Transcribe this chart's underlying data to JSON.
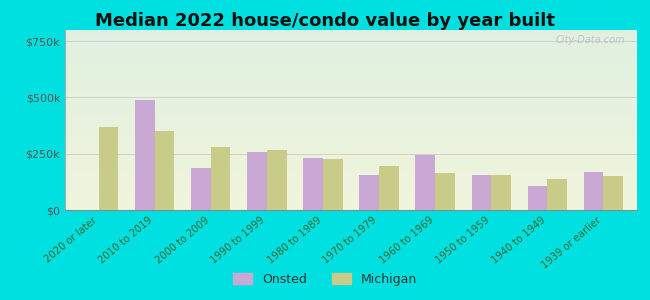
{
  "title": "Median 2022 house/condo value by year built",
  "categories": [
    "2020 or later",
    "2010 to 2019",
    "2000 to 2009",
    "1990 to 1999",
    "1980 to 1989",
    "1970 to 1979",
    "1960 to 1969",
    "1950 to 1959",
    "1940 to 1949",
    "1939 or earlier"
  ],
  "onsted_values": [
    null,
    490000,
    185000,
    260000,
    230000,
    155000,
    245000,
    155000,
    105000,
    170000
  ],
  "michigan_values": [
    370000,
    350000,
    280000,
    265000,
    225000,
    195000,
    165000,
    155000,
    140000,
    150000
  ],
  "onsted_color": "#c9a8d4",
  "michigan_color": "#c8cc88",
  "bar_width": 0.35,
  "yticks": [
    0,
    250000,
    500000,
    750000
  ],
  "ytick_labels": [
    "$0",
    "$250k",
    "$500k",
    "$750k"
  ],
  "ylim": [
    0,
    800000
  ],
  "background_color": "#00e0e0",
  "plot_bg_color_bottom": "#f0f4dc",
  "plot_bg_color_top": "#e0f0e0",
  "title_fontsize": 13,
  "legend_labels": [
    "Onsted",
    "Michigan"
  ],
  "watermark": "City-Data.com"
}
